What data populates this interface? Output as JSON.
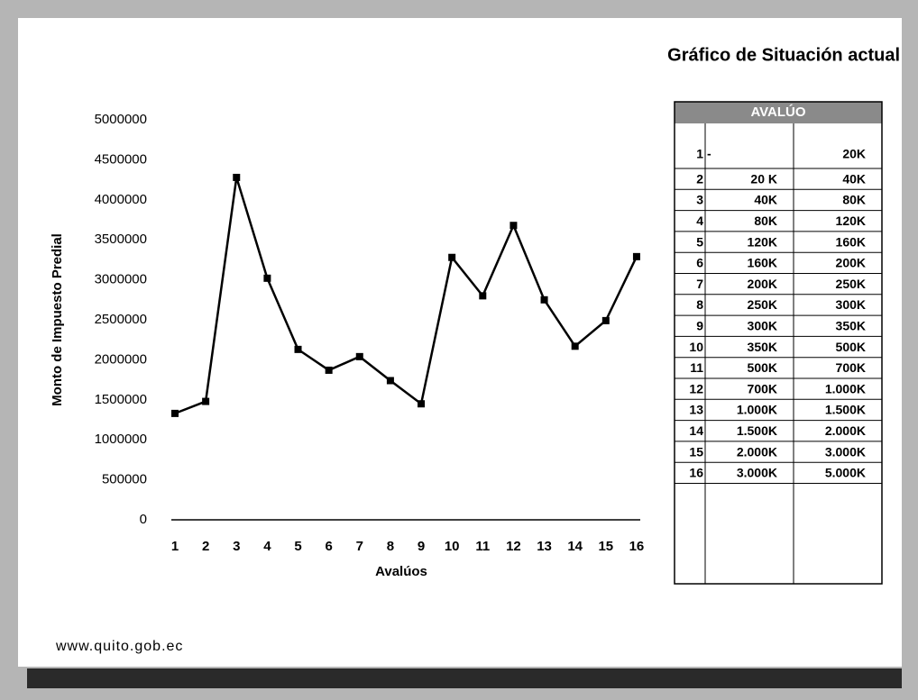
{
  "chart_data": {
    "type": "line",
    "title": "Gráfico de Situación actual",
    "x_label": "Avalúos",
    "y_label": "Monto de Impuesto Predial",
    "categories": [
      "1",
      "2",
      "3",
      "4",
      "5",
      "6",
      "7",
      "8",
      "9",
      "10",
      "11",
      "12",
      "13",
      "14",
      "15",
      "16"
    ],
    "values": [
      1330000,
      1480000,
      4280000,
      3020000,
      2130000,
      1870000,
      2040000,
      1740000,
      1450000,
      3280000,
      2800000,
      3680000,
      2750000,
      2170000,
      2490000,
      3290000
    ],
    "color": "#000000",
    "ylim": [
      0,
      5000000
    ],
    "yticks": [
      0,
      500000,
      1000000,
      1500000,
      2000000,
      2500000,
      3000000,
      3500000,
      4000000,
      4500000,
      5000000
    ],
    "grid": false
  },
  "table": {
    "header": "AVALÚO",
    "rows": [
      [
        "1",
        "-",
        "20K"
      ],
      [
        "2",
        "20 K",
        "40K"
      ],
      [
        "3",
        "40K",
        "80K"
      ],
      [
        "4",
        "80K",
        "120K"
      ],
      [
        "5",
        "120K",
        "160K"
      ],
      [
        "6",
        "160K",
        "200K"
      ],
      [
        "7",
        "200K",
        "250K"
      ],
      [
        "8",
        "250K",
        "300K"
      ],
      [
        "9",
        "300K",
        "350K"
      ],
      [
        "10",
        "350K",
        "500K"
      ],
      [
        "11",
        "500K",
        "700K"
      ],
      [
        "12",
        "700K",
        "1.000K"
      ],
      [
        "13",
        "1.000K",
        "1.500K"
      ],
      [
        "14",
        "1.500K",
        "2.000K"
      ],
      [
        "15",
        "2.000K",
        "3.000K"
      ],
      [
        "16",
        "3.000K",
        "5.000K"
      ]
    ]
  },
  "footer": "www.quito.gob.ec"
}
